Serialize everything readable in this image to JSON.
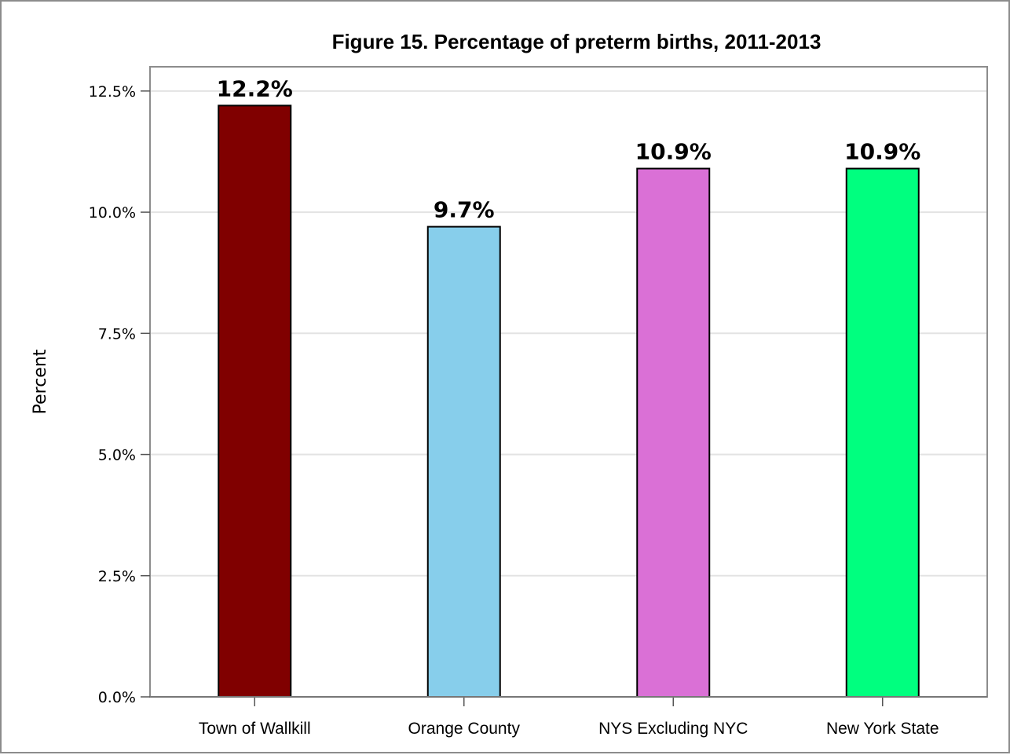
{
  "chart_data": {
    "type": "bar",
    "title": "Figure 15. Percentage of preterm births, 2011-2013",
    "xlabel": "",
    "ylabel": "Percent",
    "categories": [
      "Town of Wallkill",
      "Orange County",
      "NYS Excluding NYC",
      "New York State"
    ],
    "values": [
      12.2,
      9.7,
      10.9,
      10.9
    ],
    "data_labels": [
      "12.2%",
      "9.7%",
      "10.9%",
      "10.9%"
    ],
    "colors": [
      "#800000",
      "#87ceeb",
      "#da70d6",
      "#00ff7f"
    ],
    "ylim": [
      0,
      13
    ],
    "yticks": [
      0,
      2.5,
      5,
      7.5,
      10,
      12.5
    ],
    "ytick_labels": [
      "0.0%",
      "2.5%",
      "5.0%",
      "7.5%",
      "10.0%",
      "12.5%"
    ],
    "grid": true,
    "legend": "none"
  }
}
